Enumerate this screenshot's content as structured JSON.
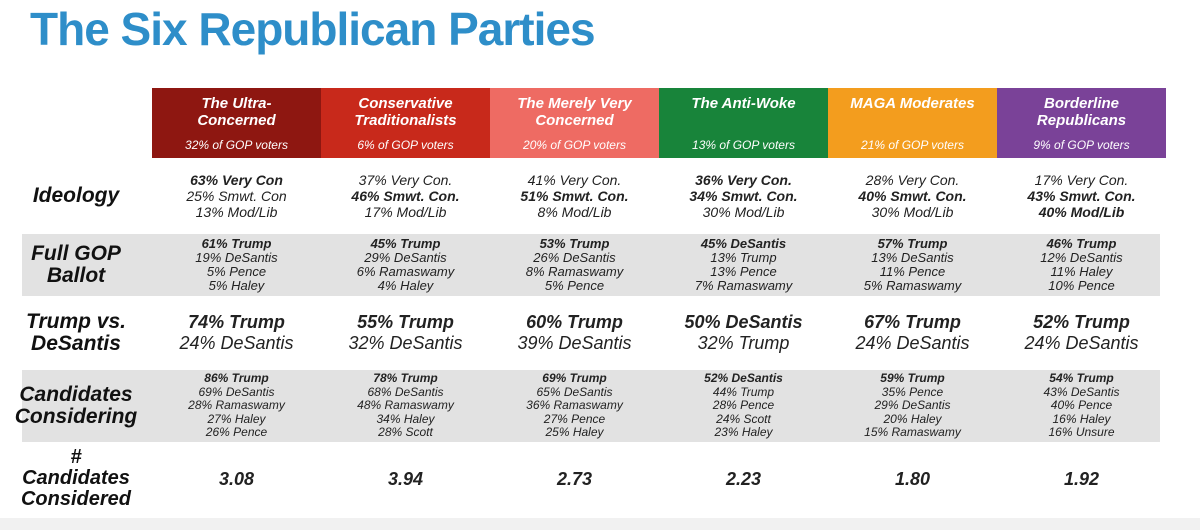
{
  "title": "The Six Republican Parties",
  "colors": {
    "title_blue": "#2E8EC9",
    "stripe_gray": "#E2E2E2",
    "body_text": "#222222",
    "header_text": "#FFFFFF",
    "bottom_strip": "#F1F1F1"
  },
  "chart_data": {
    "type": "table",
    "title": "The Six Republican Parties",
    "columns": [
      {
        "name": "The Ultra-\nConcerned",
        "share": "32% of GOP voters",
        "color": "#8E1711"
      },
      {
        "name": "Conservative\nTraditionalists",
        "share": "6% of GOP voters",
        "color": "#C8291B"
      },
      {
        "name": "The Merely Very\nConcerned",
        "share": "20% of GOP voters",
        "color": "#EE6B63"
      },
      {
        "name": "The Anti-Woke",
        "share": "13% of GOP voters",
        "color": "#18843A"
      },
      {
        "name": "MAGA Moderates",
        "share": "21% of GOP voters",
        "color": "#F39D1E"
      },
      {
        "name": "Borderline\nRepublicans",
        "share": "9% of GOP voters",
        "color": "#7A4298"
      }
    ],
    "rows": [
      {
        "key": "ideology",
        "label": "Ideology",
        "striped": false,
        "cells": [
          [
            {
              "t": "63% Very Con",
              "b": true
            },
            {
              "t": "25% Smwt. Con",
              "b": false
            },
            {
              "t": "13% Mod/Lib",
              "b": false
            }
          ],
          [
            {
              "t": "37% Very Con.",
              "b": false
            },
            {
              "t": "46% Smwt. Con.",
              "b": true
            },
            {
              "t": "17% Mod/Lib",
              "b": false
            }
          ],
          [
            {
              "t": "41% Very Con.",
              "b": false
            },
            {
              "t": "51% Smwt. Con.",
              "b": true
            },
            {
              "t": "8% Mod/Lib",
              "b": false
            }
          ],
          [
            {
              "t": "36% Very Con.",
              "b": true
            },
            {
              "t": "34% Smwt. Con.",
              "b": true
            },
            {
              "t": "30% Mod/Lib",
              "b": false
            }
          ],
          [
            {
              "t": "28% Very Con.",
              "b": false
            },
            {
              "t": "40% Smwt. Con.",
              "b": true
            },
            {
              "t": "30% Mod/Lib",
              "b": false
            }
          ],
          [
            {
              "t": "17% Very Con.",
              "b": false
            },
            {
              "t": "43% Smwt. Con.",
              "b": true
            },
            {
              "t": "40% Mod/Lib",
              "b": true
            }
          ]
        ]
      },
      {
        "key": "full-gop-ballot",
        "label": "Full GOP\nBallot",
        "striped": true,
        "cells": [
          [
            {
              "t": "61% Trump",
              "b": true
            },
            {
              "t": "19% DeSantis",
              "b": false
            },
            {
              "t": "5% Pence",
              "b": false
            },
            {
              "t": "5% Haley",
              "b": false
            }
          ],
          [
            {
              "t": "45% Trump",
              "b": true
            },
            {
              "t": "29% DeSantis",
              "b": false
            },
            {
              "t": "6% Ramaswamy",
              "b": false
            },
            {
              "t": "4% Haley",
              "b": false
            }
          ],
          [
            {
              "t": "53% Trump",
              "b": true
            },
            {
              "t": "26% DeSantis",
              "b": false
            },
            {
              "t": "8% Ramaswamy",
              "b": false
            },
            {
              "t": "5% Pence",
              "b": false
            }
          ],
          [
            {
              "t": "45% DeSantis",
              "b": true
            },
            {
              "t": "13% Trump",
              "b": false
            },
            {
              "t": "13% Pence",
              "b": false
            },
            {
              "t": "7% Ramaswamy",
              "b": false
            }
          ],
          [
            {
              "t": "57% Trump",
              "b": true
            },
            {
              "t": "13% DeSantis",
              "b": false
            },
            {
              "t": "11% Pence",
              "b": false
            },
            {
              "t": "5% Ramaswamy",
              "b": false
            }
          ],
          [
            {
              "t": "46% Trump",
              "b": true
            },
            {
              "t": "12% DeSantis",
              "b": false
            },
            {
              "t": "11% Haley",
              "b": false
            },
            {
              "t": "10% Pence",
              "b": false
            }
          ]
        ]
      },
      {
        "key": "trump-vs-desantis",
        "label": "Trump vs.\nDeSantis",
        "striped": false,
        "cells": [
          [
            {
              "t": "74% Trump",
              "b": true
            },
            {
              "t": "24% DeSantis",
              "b": false
            }
          ],
          [
            {
              "t": "55% Trump",
              "b": true
            },
            {
              "t": "32% DeSantis",
              "b": false
            }
          ],
          [
            {
              "t": "60% Trump",
              "b": true
            },
            {
              "t": "39% DeSantis",
              "b": false
            }
          ],
          [
            {
              "t": "50% DeSantis",
              "b": true
            },
            {
              "t": "32% Trump",
              "b": false
            }
          ],
          [
            {
              "t": "67% Trump",
              "b": true
            },
            {
              "t": "24% DeSantis",
              "b": false
            }
          ],
          [
            {
              "t": "52% Trump",
              "b": true
            },
            {
              "t": "24% DeSantis",
              "b": false
            }
          ]
        ]
      },
      {
        "key": "candidates-considering",
        "label": "Candidates\nConsidering",
        "striped": true,
        "cells": [
          [
            {
              "t": "86% Trump",
              "b": true
            },
            {
              "t": "69% DeSantis",
              "b": false
            },
            {
              "t": "28% Ramaswamy",
              "b": false
            },
            {
              "t": "27% Haley",
              "b": false
            },
            {
              "t": "26% Pence",
              "b": false
            }
          ],
          [
            {
              "t": "78% Trump",
              "b": true
            },
            {
              "t": "68% DeSantis",
              "b": false
            },
            {
              "t": "48% Ramaswamy",
              "b": false
            },
            {
              "t": "34% Haley",
              "b": false
            },
            {
              "t": "28% Scott",
              "b": false
            }
          ],
          [
            {
              "t": "69% Trump",
              "b": true
            },
            {
              "t": "65% DeSantis",
              "b": false
            },
            {
              "t": "36% Ramaswamy",
              "b": false
            },
            {
              "t": "27% Pence",
              "b": false
            },
            {
              "t": "25% Haley",
              "b": false
            }
          ],
          [
            {
              "t": "52% DeSantis",
              "b": true
            },
            {
              "t": "44% Trump",
              "b": false
            },
            {
              "t": "28% Pence",
              "b": false
            },
            {
              "t": "24% Scott",
              "b": false
            },
            {
              "t": "23% Haley",
              "b": false
            }
          ],
          [
            {
              "t": "59% Trump",
              "b": true
            },
            {
              "t": "35% Pence",
              "b": false
            },
            {
              "t": "29% DeSantis",
              "b": false
            },
            {
              "t": "20% Haley",
              "b": false
            },
            {
              "t": "15% Ramaswamy",
              "b": false
            }
          ],
          [
            {
              "t": "54% Trump",
              "b": true
            },
            {
              "t": "43% DeSantis",
              "b": false
            },
            {
              "t": "40% Pence",
              "b": false
            },
            {
              "t": "16% Haley",
              "b": false
            },
            {
              "t": "16% Unsure",
              "b": false
            }
          ]
        ]
      },
      {
        "key": "num-candidates-considered",
        "label": "#\nCandidates\nConsidered",
        "striped": false,
        "cells": [
          [
            {
              "t": "3.08",
              "b": true
            }
          ],
          [
            {
              "t": "3.94",
              "b": true
            }
          ],
          [
            {
              "t": "2.73",
              "b": true
            }
          ],
          [
            {
              "t": "2.23",
              "b": true
            }
          ],
          [
            {
              "t": "1.80",
              "b": true
            }
          ],
          [
            {
              "t": "1.92",
              "b": true
            }
          ]
        ]
      }
    ]
  }
}
